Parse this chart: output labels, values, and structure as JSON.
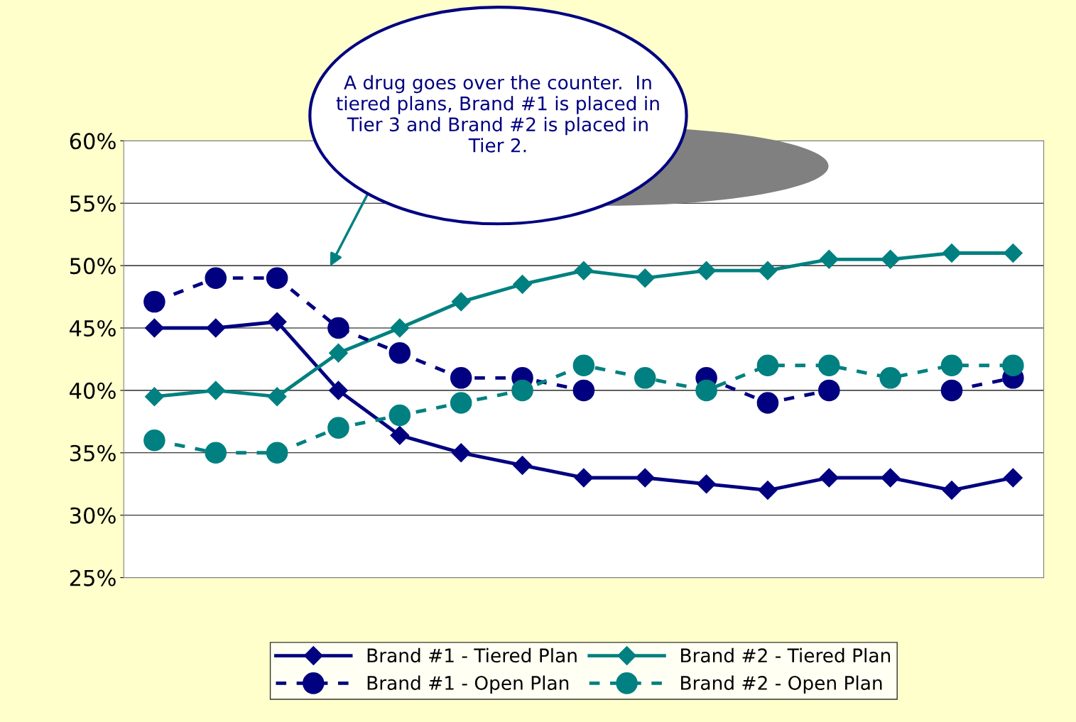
{
  "chart_data": {
    "type": "line",
    "categories": [
      null,
      null,
      null,
      null,
      null,
      null,
      null,
      null,
      null,
      null,
      null,
      null,
      null,
      null,
      null
    ],
    "series": [
      {
        "name": "Brand #1 - Tiered Plan",
        "color": "#000080",
        "marker": "diamond",
        "line_style": "solid",
        "values": [
          45,
          45,
          45.5,
          40,
          36.4,
          35,
          34,
          33,
          33,
          32.5,
          32,
          33,
          33,
          32,
          33
        ]
      },
      {
        "name": "Brand #2 - Tiered Plan",
        "color": "#008080",
        "marker": "diamond",
        "line_style": "solid",
        "values": [
          39.5,
          40,
          39.5,
          43,
          45,
          47.1,
          48.5,
          49.6,
          49,
          49.6,
          49.6,
          50.5,
          50.5,
          51,
          51
        ]
      },
      {
        "name": "Brand #1 - Open Plan",
        "color": "#000080",
        "marker": "circle",
        "line_style": "dashed",
        "values": [
          47.1,
          49,
          49,
          45,
          43,
          41,
          41,
          40,
          null,
          41,
          39,
          40,
          null,
          40,
          41
        ]
      },
      {
        "name": "Brand #2 - Open Plan",
        "color": "#008080",
        "marker": "circle",
        "line_style": "dashed",
        "values": [
          36,
          35,
          35,
          37,
          38,
          39,
          40,
          42,
          41,
          40,
          42,
          42,
          41,
          42,
          42
        ]
      }
    ],
    "ylim": [
      25,
      60
    ],
    "yticks": [
      {
        "value": 25,
        "label": "25%"
      },
      {
        "value": 30,
        "label": "30%"
      },
      {
        "value": 35,
        "label": "35%"
      },
      {
        "value": 40,
        "label": "40%"
      },
      {
        "value": 45,
        "label": "45%"
      },
      {
        "value": 50,
        "label": "50%"
      },
      {
        "value": 55,
        "label": "55%"
      },
      {
        "value": 60,
        "label": "60%"
      }
    ],
    "grid": "y",
    "legend": "bottom",
    "tick_labels": "y",
    "annotations": [
      "A drug goes over the counter.  In tiered plans, Brand #1 is placed in Tier 3 and Brand #2 is placed in Tier 2."
    ]
  }
}
